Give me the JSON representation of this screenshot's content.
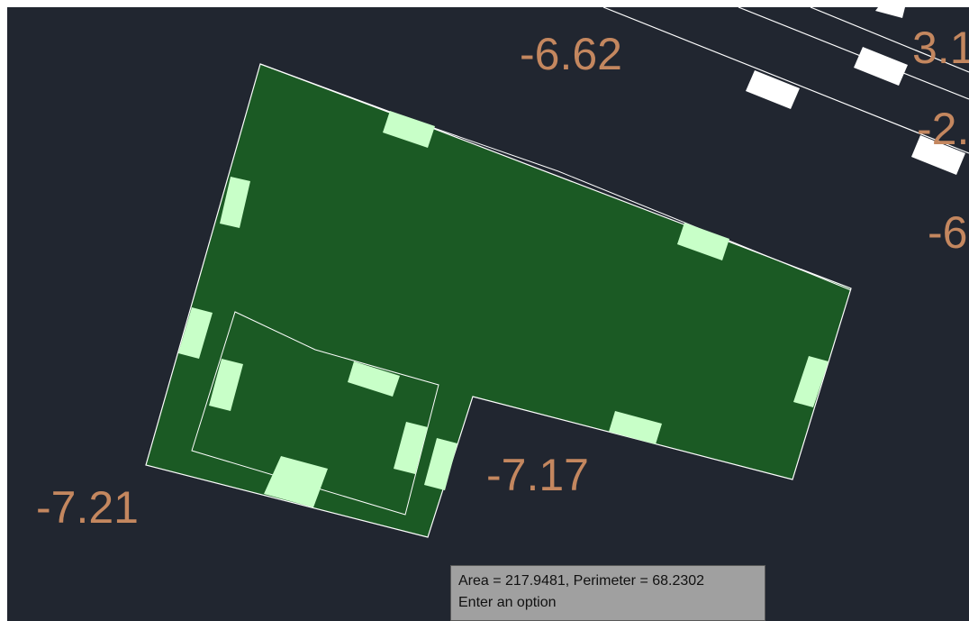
{
  "colors": {
    "background": "#212630",
    "region_fill": "#1b5a24",
    "outline": "#ffffff",
    "window_hatch": "#c8ffc8",
    "elevation_text": "#c4875f",
    "tooltip_bg": "#a0a0a0"
  },
  "elevations": {
    "top": "-6.62",
    "left": "-7.21",
    "inner": "-7.17",
    "right_top": "3.1",
    "right_mid": "-2.",
    "right_low": "-6"
  },
  "tooltip": {
    "line1": "Area = 217.9481, Perimeter = 68.2302",
    "line2": "Enter an option"
  }
}
